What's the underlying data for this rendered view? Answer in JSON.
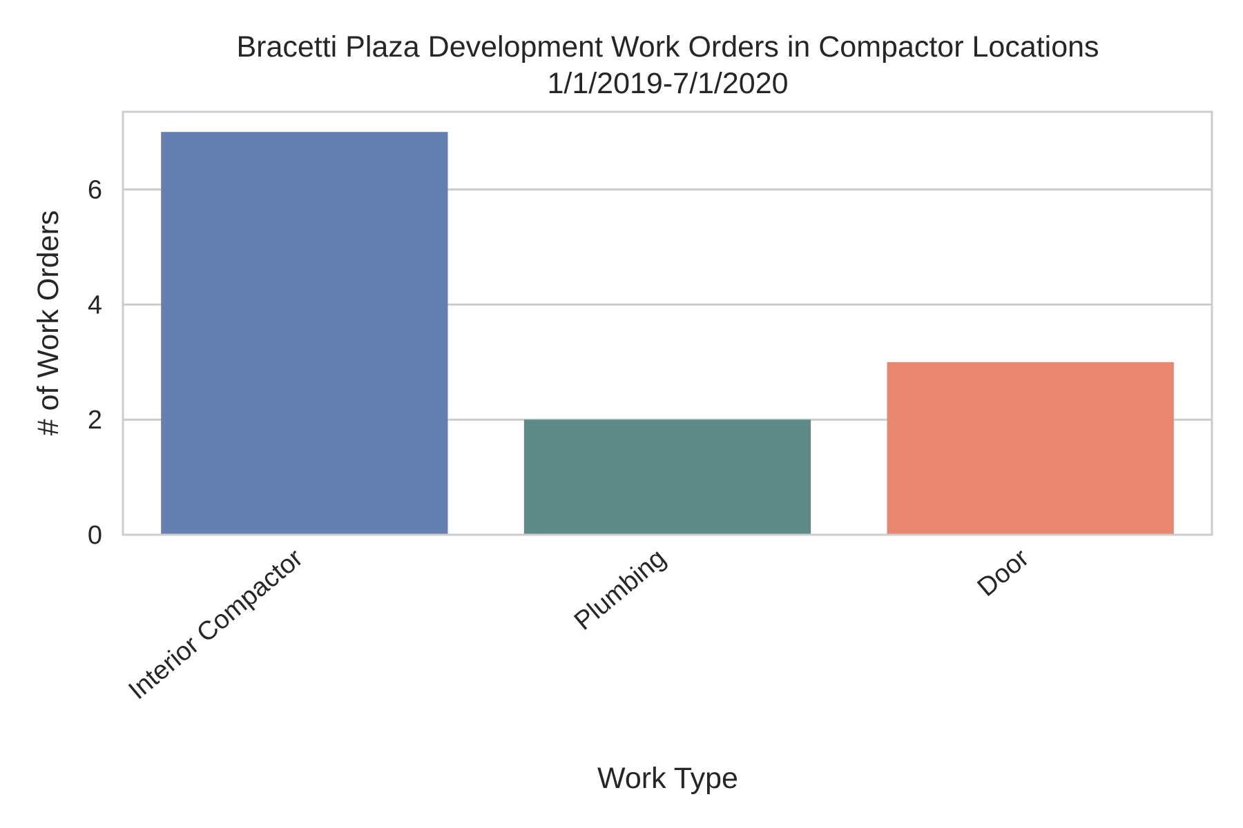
{
  "chart_data": {
    "type": "bar",
    "title": "Bracetti Plaza Development Work Orders in Compactor Locations",
    "subtitle": "1/1/2019-7/1/2020",
    "xlabel": "Work Type",
    "ylabel": "# of Work Orders",
    "categories": [
      "Interior Compactor",
      "Plumbing",
      "Door"
    ],
    "values": [
      7,
      2,
      3
    ],
    "colors": [
      "#6580b0",
      "#5e8a87",
      "#e8866f"
    ],
    "ylim": [
      0,
      7.35
    ],
    "yticks": [
      0,
      2,
      4,
      6
    ],
    "grid": true,
    "grid_color": "#cccccc",
    "frame_color": "#cccccc",
    "x_tick_rotation": -40
  }
}
